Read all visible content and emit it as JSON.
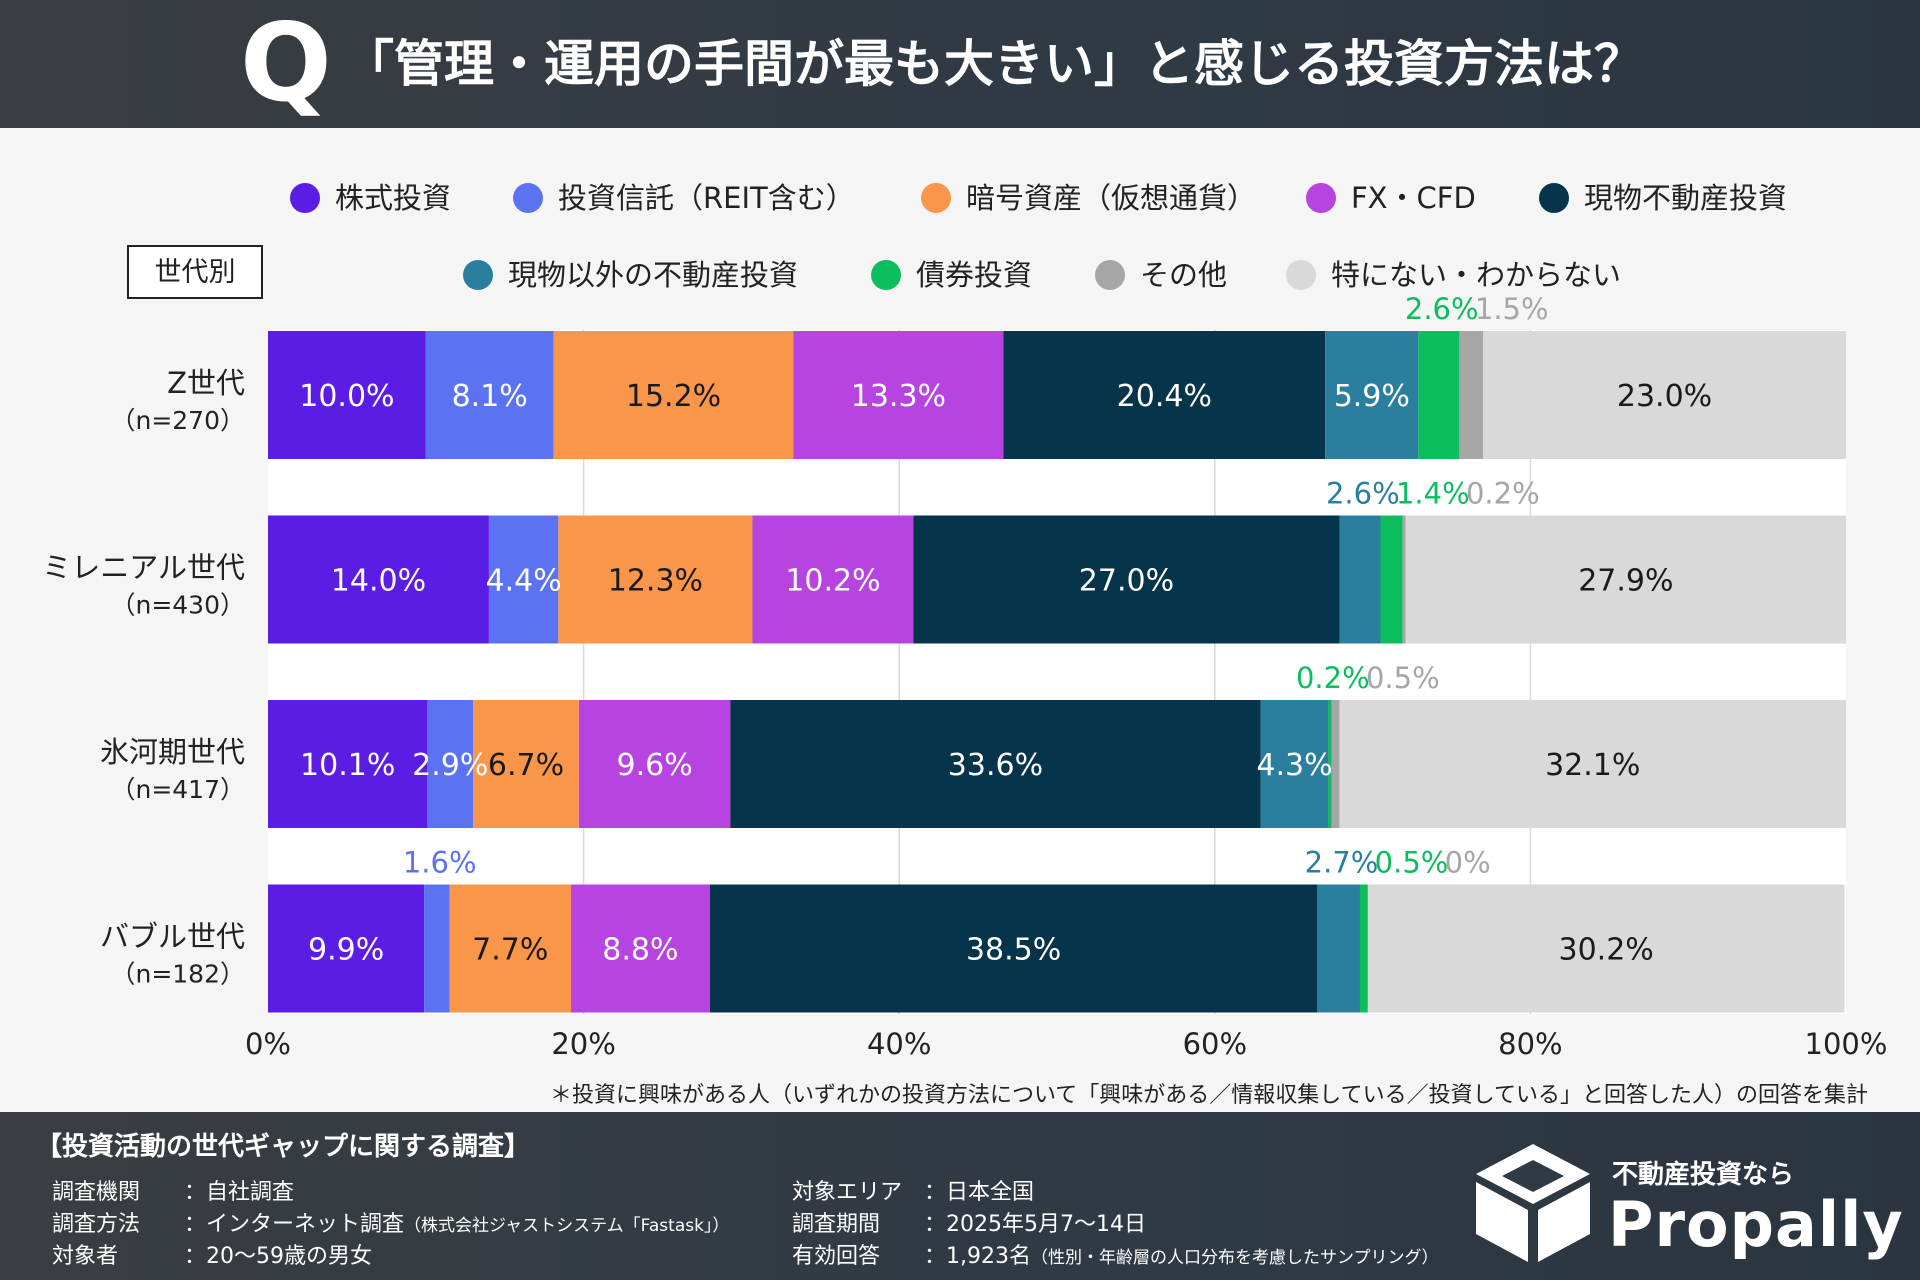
{
  "header": {
    "q_mark": "Q",
    "title": "「管理・運用の手間が最も大きい」と感じる投資方法は？"
  },
  "colors": {
    "header_bg": "#33393f",
    "plot_bg": "#ffffff",
    "grid": "#d9d9d9",
    "text": "#222222"
  },
  "chart_data": {
    "type": "bar",
    "orientation": "horizontal",
    "stacked": true,
    "group_label": "世代別",
    "categories": [
      "Z世代",
      "ミレニアル世代",
      "氷河期世代",
      "バブル世代"
    ],
    "category_sublabels": [
      "（n=270）",
      "（n=430）",
      "（n=417）",
      "（n=182）"
    ],
    "series": [
      {
        "name": "株式投資",
        "color": "#5b1ce6",
        "values": [
          10.0,
          14.0,
          10.1,
          9.9
        ],
        "labels": [
          "10.0%",
          "14.0%",
          "10.1%",
          "9.9%"
        ]
      },
      {
        "name": "投資信託（REIT含む）",
        "color": "#5b73f2",
        "values": [
          8.1,
          4.4,
          2.9,
          1.6
        ],
        "labels": [
          "8.1%",
          "4.4%",
          "2.9%",
          "1.6%"
        ]
      },
      {
        "name": "暗号資産（仮想通貨）",
        "color": "#fa964a",
        "values": [
          15.2,
          12.3,
          6.7,
          7.7
        ],
        "labels": [
          "15.2%",
          "12.3%",
          "6.7%",
          "7.7%"
        ]
      },
      {
        "name": "FX・CFD",
        "color": "#b743e0",
        "values": [
          13.3,
          10.2,
          9.6,
          8.8
        ],
        "labels": [
          "13.3%",
          "10.2%",
          "9.6%",
          "8.8%"
        ]
      },
      {
        "name": "現物不動産投資",
        "color": "#06344b",
        "values": [
          20.4,
          27.0,
          33.6,
          38.5
        ],
        "labels": [
          "20.4%",
          "27.0%",
          "33.6%",
          "38.5%"
        ]
      },
      {
        "name": "現物以外の不動産投資",
        "color": "#2b7f9e",
        "values": [
          5.9,
          2.6,
          4.3,
          2.7
        ],
        "labels": [
          "5.9%",
          "2.6%",
          "4.3%",
          "2.7%"
        ]
      },
      {
        "name": "債券投資",
        "color": "#0cbd5d",
        "values": [
          2.6,
          1.4,
          0.2,
          0.5
        ],
        "labels": [
          "2.6%",
          "1.4%",
          "0.2%",
          "0.5%"
        ]
      },
      {
        "name": "その他",
        "color": "#a6a6a6",
        "values": [
          1.5,
          0.2,
          0.5,
          0.0
        ],
        "labels": [
          "1.5%",
          "0.2%",
          "0.5%",
          "0%"
        ]
      },
      {
        "name": "特にない・わからない",
        "color": "#d9d9d9",
        "values": [
          23.0,
          27.9,
          32.1,
          30.2
        ],
        "labels": [
          "23.0%",
          "27.9%",
          "32.1%",
          "30.2%"
        ]
      }
    ],
    "xlim": [
      0,
      100
    ],
    "x_ticks": [
      "0%",
      "20%",
      "40%",
      "60%",
      "80%",
      "100%"
    ],
    "legend_position": "top",
    "note": "＊投資に興味がある人（いずれかの投資方法について「興味がある／情報収集している／投資している」と回答した人）の回答を集計"
  },
  "footer": {
    "title": "【投資活動の世代ギャップに関する調査】",
    "left": [
      {
        "key": "調査機関",
        "value": "：自社調査",
        "note": ""
      },
      {
        "key": "調査方法",
        "value": "：インターネット調査",
        "note": "（株式会社ジャストシステム「Fastask」）"
      },
      {
        "key": "対象者",
        "value": "：20～59歳の男女",
        "note": ""
      }
    ],
    "right": [
      {
        "key": "対象エリア",
        "value": "：日本全国",
        "note": ""
      },
      {
        "key": "調査期間",
        "value": "：2025年5月7～14日",
        "note": ""
      },
      {
        "key": "有効回答",
        "value": "：1,923名",
        "note": "（性別・年齢層の人口分布を考慮したサンプリング）"
      }
    ],
    "brand_sub": "不動産投資なら",
    "brand": "Propally"
  }
}
